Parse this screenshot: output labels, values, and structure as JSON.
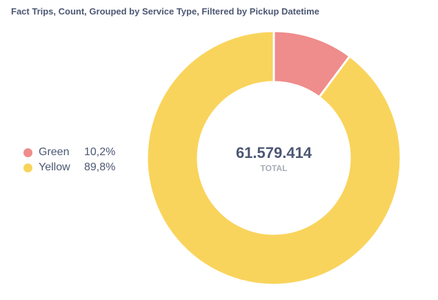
{
  "card": {
    "title": "Fact Trips, Count, Grouped by Service Type, Filtered by Pickup Datetime"
  },
  "chart_data": {
    "type": "pie",
    "categories": [
      "Green",
      "Yellow"
    ],
    "values": [
      10.2,
      89.8
    ],
    "value_labels": [
      "10,2%",
      "89,8%"
    ],
    "colors": [
      "#ef8c8c",
      "#f9d45c"
    ],
    "center_value": "61.579.414",
    "center_label": "TOTAL",
    "legend_position": "left"
  }
}
